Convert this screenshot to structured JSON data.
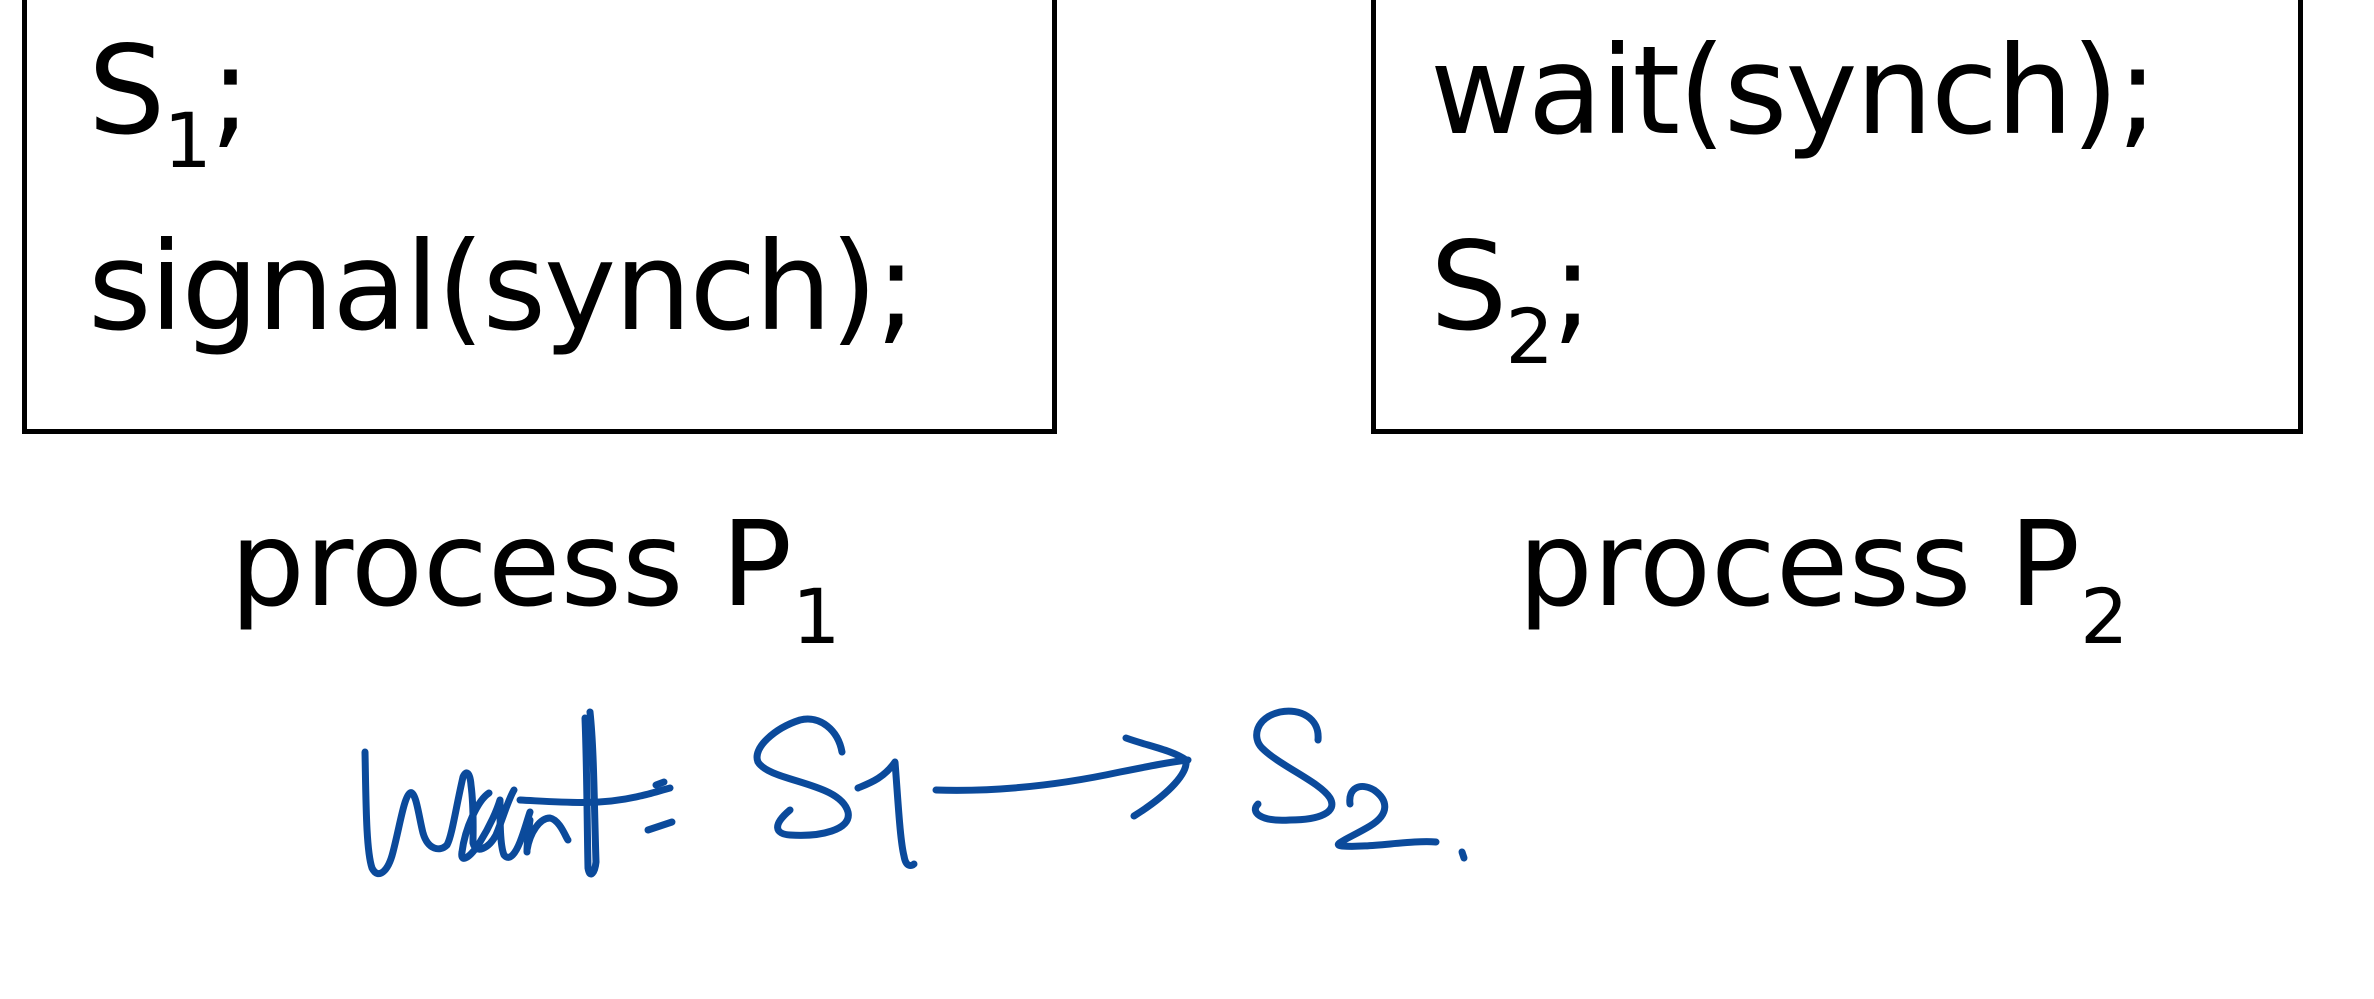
{
  "process_p1": {
    "line1_main": "S",
    "line1_sub": "1",
    "line1_tail": ";",
    "line2": "signal(synch);",
    "label_main": "process P",
    "label_sub": "1"
  },
  "process_p2": {
    "line1": "wait(synch);",
    "line2_main": "S",
    "line2_sub": "2",
    "line2_tail": ";",
    "label_main": "process P",
    "label_sub": "2"
  },
  "handwritten_note": {
    "text": "want: S1 → S2",
    "ink_color": "#0b4a9b"
  }
}
